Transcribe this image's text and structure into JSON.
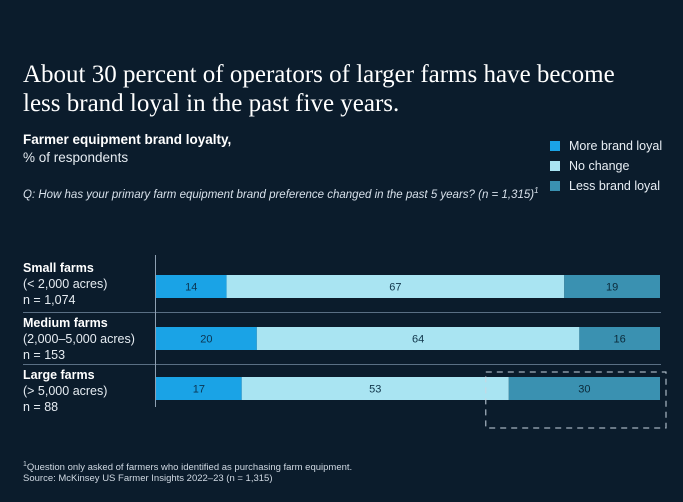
{
  "title": "About 30 percent of operators of larger farms have become less brand loyal in the past five years.",
  "subtitle_bold": "Farmer equipment brand loyalty,",
  "subtitle_light": "% of respondents",
  "question": "Q: How has your primary farm equipment brand preference changed in the past 5 years? (n = 1,315)",
  "question_sup": "1",
  "footnote_line1": "Question only asked of farmers who identified as purchasing farm equipment.",
  "footnote_line2": "Source: McKinsey US Farmer Insights 2022–23 (n = 1,315)",
  "colors": {
    "more": "#1aa3e6",
    "nochange": "#a9e4f2",
    "less": "#3a91b1",
    "background": "#0b1c2c"
  },
  "chart_data": {
    "type": "bar",
    "orientation": "horizontal",
    "stacked": true,
    "categories": [
      {
        "name": "Small farms",
        "sub": "(< 2,000 acres)",
        "n": "n = 1,074"
      },
      {
        "name": "Medium farms",
        "sub": "(2,000–5,000 acres)",
        "n": "n = 153"
      },
      {
        "name": "Large farms",
        "sub": "(> 5,000 acres)",
        "n": "n = 88"
      }
    ],
    "series": [
      {
        "name": "More brand loyal",
        "values": [
          14,
          20,
          17
        ]
      },
      {
        "name": "No change",
        "values": [
          67,
          64,
          53
        ]
      },
      {
        "name": "Less brand loyal",
        "values": [
          19,
          16,
          30
        ]
      }
    ],
    "xlim": [
      0,
      100
    ],
    "legend": "top-right",
    "highlight": "Large farms – Less brand loyal"
  }
}
